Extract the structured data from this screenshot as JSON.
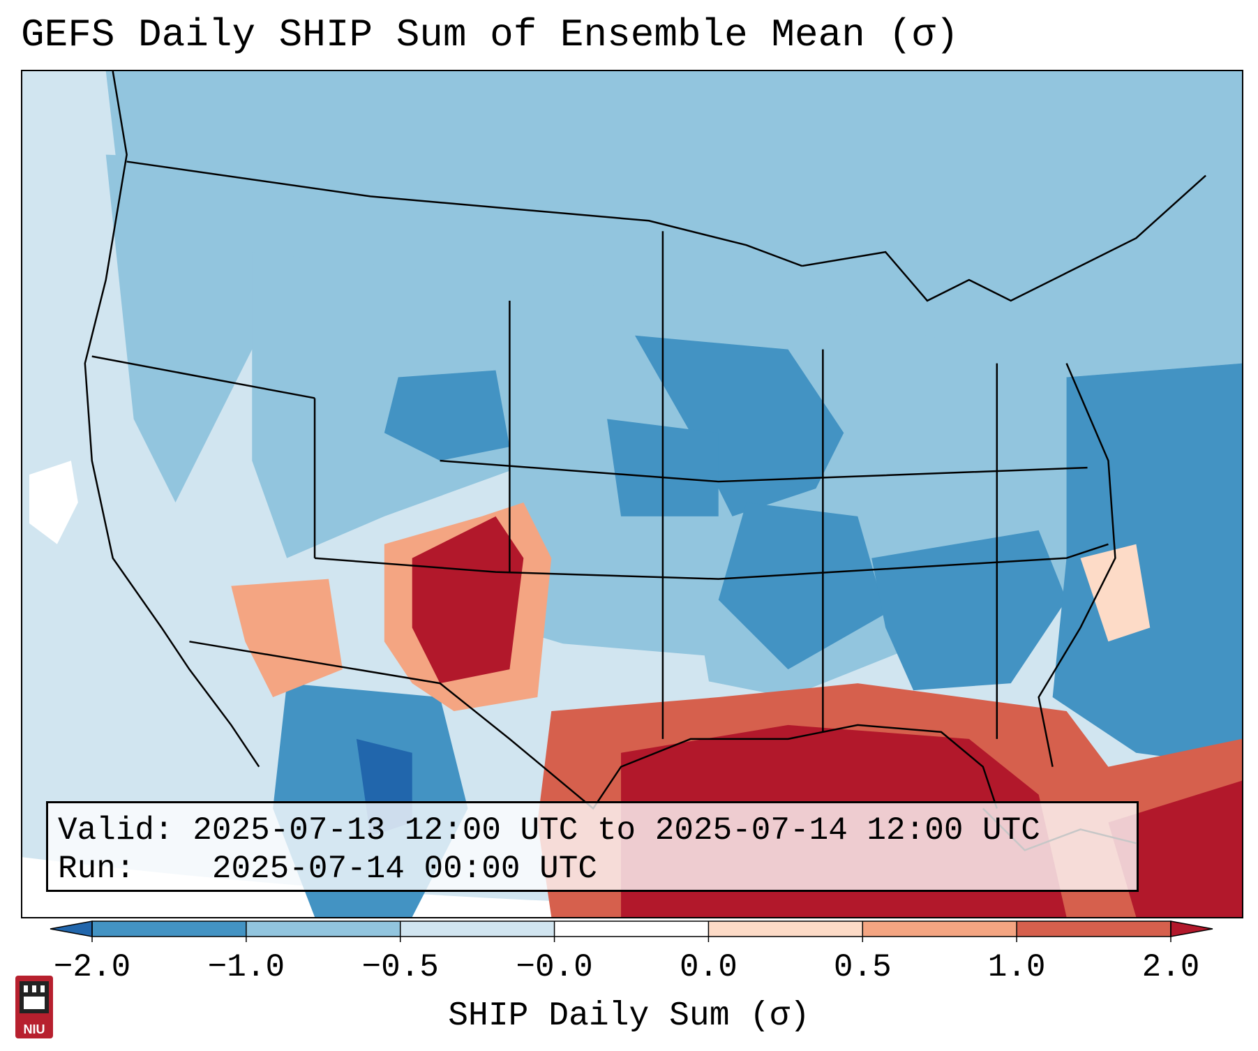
{
  "title": "GEFS Daily SHIP Sum of Ensemble Mean (σ)",
  "info": {
    "valid_label": "Valid:",
    "valid_value": "2025-07-13 12:00 UTC to 2025-07-14 12:00 UTC",
    "run_label": "Run:",
    "run_value": "2025-07-14 00:00 UTC"
  },
  "colorbar": {
    "label": "SHIP Daily Sum (σ)",
    "ticks": [
      "−2.0",
      "−1.0",
      "−0.5",
      "−0.0",
      "0.0",
      "0.5",
      "1.0",
      "2.0"
    ],
    "colors": [
      "#2166ac",
      "#4393c3",
      "#92c5de",
      "#d1e5f0",
      "#ffffff",
      "#fddbc7",
      "#f4a582",
      "#d6604d",
      "#b2182b"
    ]
  },
  "legend_colors": {
    "background_projection": "#d1e5f0",
    "very_low": "#2166ac",
    "low": "#4393c3",
    "mid_low": "#92c5de",
    "near_zero_low": "#d1e5f0",
    "near_zero_high": "#fddbc7",
    "mid_high": "#f4a582",
    "high": "#d6604d",
    "very_high": "#b2182b"
  },
  "logo": {
    "text": "NIU",
    "name": "niu-logo-icon"
  }
}
